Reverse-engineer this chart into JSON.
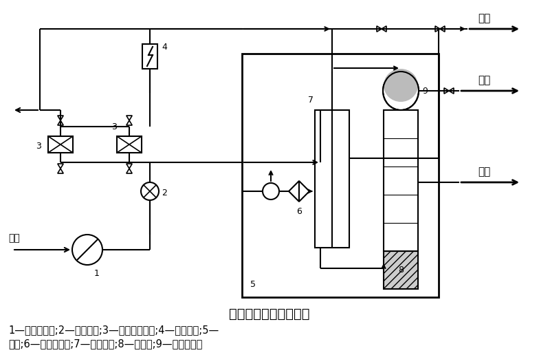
{
  "title": "深冷分离制氮工艺流程",
  "legend_line1": "1—空气压缩机;2—预冷机组;3—分子筛吸附器;4—电加热器;5—",
  "legend_line2": "冷箱;6—透平膨胀机;7—主换热器;8—精馏塔;9—冷凝蒸发器",
  "label_kongqi": "空气",
  "label_fangkong": "放空",
  "label_danqi": "氮气",
  "label_yedan": "液氮",
  "bg_color": "#ffffff"
}
